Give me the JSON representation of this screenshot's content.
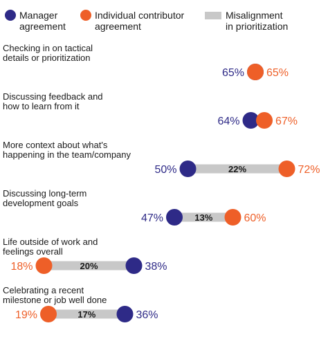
{
  "chart_data": {
    "type": "dumbbell",
    "x_range": [
      0,
      100
    ],
    "colors": {
      "manager": "#2e2a87",
      "ic": "#ee5f28",
      "gap": "#c8c8c8",
      "text": "#1a1a1a"
    },
    "legend": [
      {
        "key": "manager",
        "line1": "Manager",
        "line2": "agreement"
      },
      {
        "key": "ic",
        "line1": "Individual contributor",
        "line2": "agreement"
      },
      {
        "key": "gap",
        "line1": "Misalignment",
        "line2": "in prioritization"
      }
    ],
    "series": [
      {
        "name": "Manager agreement",
        "key": "manager"
      },
      {
        "name": "Individual contributor agreement",
        "key": "ic"
      }
    ],
    "categories": [
      {
        "label_lines": [
          "Checking in on tactical",
          "details or prioritization"
        ],
        "manager": 65,
        "ic": 65,
        "manager_label": "65%",
        "ic_label": "65%",
        "gap_label": ""
      },
      {
        "label_lines": [
          "Discussing feedback and",
          "how to learn from it"
        ],
        "manager": 64,
        "ic": 67,
        "manager_label": "64%",
        "ic_label": "67%",
        "gap_label": ""
      },
      {
        "label_lines": [
          "More context about what's",
          "happening in the team/company"
        ],
        "manager": 50,
        "ic": 72,
        "manager_label": "50%",
        "ic_label": "72%",
        "gap_label": "22%"
      },
      {
        "label_lines": [
          "Discussing long-term",
          "development goals"
        ],
        "manager": 47,
        "ic": 60,
        "manager_label": "47%",
        "ic_label": "60%",
        "gap_label": "13%"
      },
      {
        "label_lines": [
          "Life outside of work and",
          "feelings overall"
        ],
        "manager": 38,
        "ic": 18,
        "manager_label": "38%",
        "ic_label": "18%",
        "gap_label": "20%"
      },
      {
        "label_lines": [
          "Celebrating a recent",
          "milestone or job well done"
        ],
        "manager": 36,
        "ic": 19,
        "manager_label": "36%",
        "ic_label": "19%",
        "gap_label": "17%"
      }
    ]
  }
}
